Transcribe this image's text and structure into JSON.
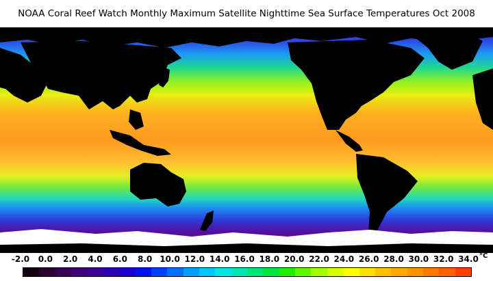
{
  "title": "NOAA Coral Reef Watch Monthly Maximum Satellite Nighttime Sea Surface Temperatures    Oct 2008",
  "colorbar": {
    "unit": "°C",
    "labels": [
      "-2.0",
      "0.0",
      "2.0",
      "4.0",
      "6.0",
      "8.0",
      "10.0",
      "12.0",
      "14.0",
      "16.0",
      "18.0",
      "20.0",
      "22.0",
      "24.0",
      "26.0",
      "28.0",
      "30.0",
      "32.0",
      "34.0"
    ],
    "colors": [
      "#150010",
      "#2a0030",
      "#3a0056",
      "#420078",
      "#3c0096",
      "#2c00b4",
      "#1a00d2",
      "#0010f0",
      "#0040ff",
      "#0070ff",
      "#00a0ff",
      "#00c8ff",
      "#00e6e6",
      "#00e6b4",
      "#00e678",
      "#00e63c",
      "#20f000",
      "#60f800",
      "#a0ff00",
      "#d8ff00",
      "#ffff00",
      "#ffe000",
      "#ffc000",
      "#ffa800",
      "#ff9000",
      "#ff7800",
      "#ff6000",
      "#ff4000"
    ]
  },
  "map": {
    "land_color": "#000000",
    "ice_color": "#ffffff"
  }
}
